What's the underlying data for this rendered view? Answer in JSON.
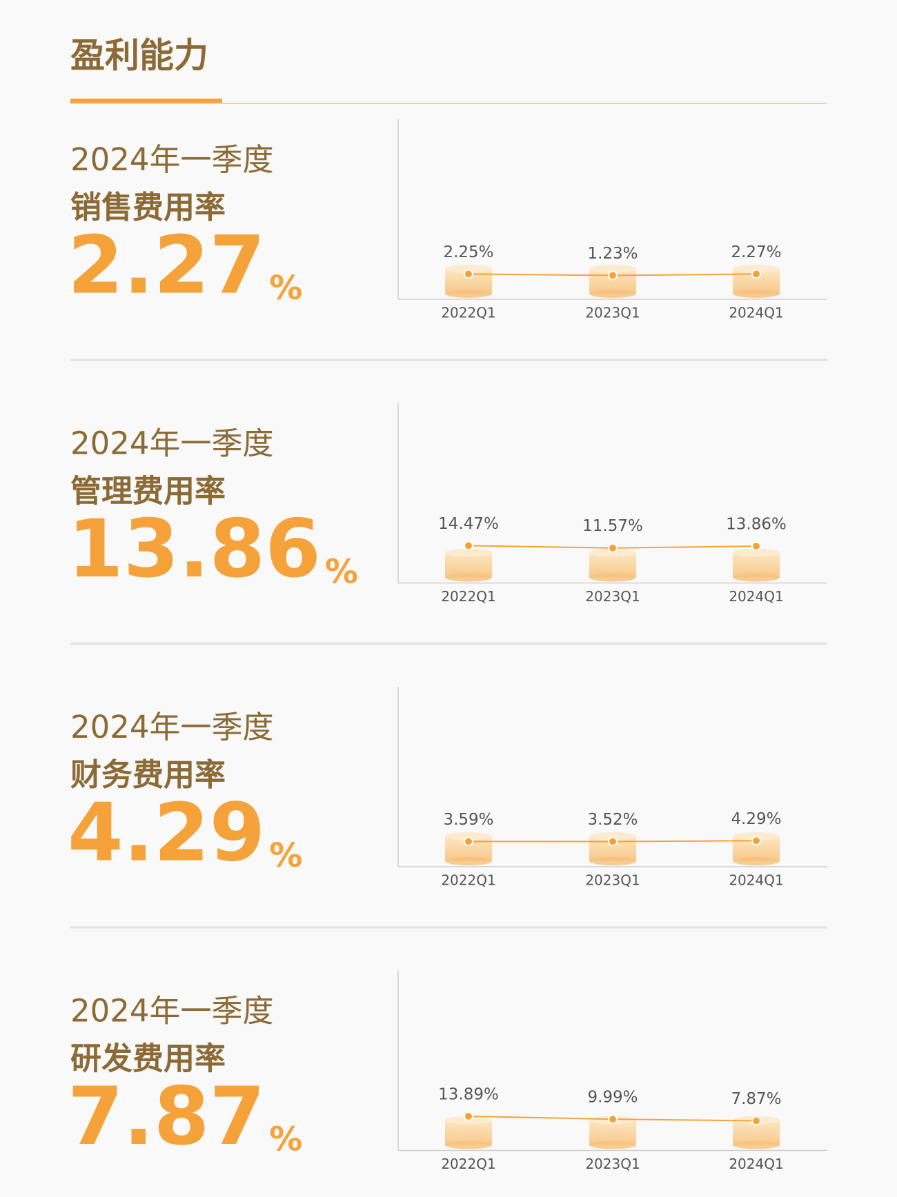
{
  "title": "盈利能力",
  "chart_data": [
    {
      "type": "line",
      "subtitle": "2024年一季度",
      "title": "销售费用率",
      "headline": {
        "value": "2.27",
        "unit": "%"
      },
      "categories": [
        "2022Q1",
        "2023Q1",
        "2024Q1"
      ],
      "values": [
        2.25,
        1.23,
        2.27
      ],
      "value_labels": [
        "2.25%",
        "1.23%",
        "2.27%"
      ],
      "color": "#f5a23a",
      "ylim": [
        -15,
        108
      ]
    },
    {
      "type": "line",
      "subtitle": "2024年一季度",
      "title": "管理费用率",
      "headline": {
        "value": "13.86",
        "unit": "%"
      },
      "categories": [
        "2022Q1",
        "2023Q1",
        "2024Q1"
      ],
      "values": [
        14.47,
        11.57,
        13.86
      ],
      "value_labels": [
        "14.47%",
        "11.57%",
        "13.86%"
      ],
      "color": "#f5a23a",
      "ylim": [
        -33,
        196
      ]
    },
    {
      "type": "line",
      "subtitle": "2024年一季度",
      "title": "财务费用率",
      "headline": {
        "value": "4.29",
        "unit": "%"
      },
      "categories": [
        "2022Q1",
        "2023Q1",
        "2024Q1"
      ],
      "values": [
        3.59,
        3.52,
        4.29
      ],
      "value_labels": [
        "3.59%",
        "3.52%",
        "4.29%"
      ],
      "color": "#f5a23a",
      "ylim": [
        -20,
        148
      ]
    },
    {
      "type": "line",
      "subtitle": "2024年一季度",
      "title": "研发费用率",
      "headline": {
        "value": "7.87",
        "unit": "%"
      },
      "categories": [
        "2022Q1",
        "2023Q1",
        "2024Q1"
      ],
      "values": [
        13.89,
        9.99,
        7.87
      ],
      "value_labels": [
        "13.89%",
        "9.99%",
        "7.87%"
      ],
      "color": "#f5a23a",
      "ylim": [
        -31,
        205
      ]
    }
  ]
}
